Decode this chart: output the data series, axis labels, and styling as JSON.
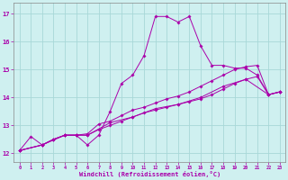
{
  "bg_color": "#cff0f0",
  "grid_color": "#a8d8d8",
  "line_color": "#aa00aa",
  "xlim_min": -0.5,
  "xlim_max": 23.5,
  "ylim_min": 11.7,
  "ylim_max": 17.4,
  "xticks": [
    0,
    1,
    2,
    3,
    4,
    5,
    6,
    7,
    8,
    9,
    10,
    11,
    12,
    13,
    14,
    15,
    16,
    17,
    18,
    19,
    20,
    21,
    22,
    23
  ],
  "yticks": [
    12,
    13,
    14,
    15,
    16,
    17
  ],
  "xlabel": "Windchill (Refroidissement éolien,°C)",
  "line1_x": [
    0,
    1,
    2,
    3,
    4,
    5,
    6,
    7,
    8,
    9,
    10,
    11,
    12,
    13,
    14,
    15,
    16,
    17,
    18,
    19,
    20,
    21,
    22,
    23
  ],
  "line1_y": [
    12.1,
    12.6,
    12.3,
    12.5,
    12.65,
    12.65,
    12.3,
    12.65,
    13.5,
    14.5,
    14.8,
    15.5,
    16.9,
    16.9,
    16.7,
    16.9,
    15.85,
    15.15,
    15.15,
    15.05,
    15.05,
    14.8,
    14.1,
    14.2
  ],
  "line2_x": [
    0,
    2,
    3,
    4,
    5,
    6,
    7,
    8,
    9,
    10,
    11,
    12,
    13,
    14,
    15,
    16,
    17,
    18,
    19,
    20,
    21,
    22,
    23
  ],
  "line2_y": [
    12.1,
    12.3,
    12.5,
    12.65,
    12.65,
    12.7,
    13.05,
    13.15,
    13.35,
    13.55,
    13.65,
    13.8,
    13.95,
    14.05,
    14.2,
    14.4,
    14.6,
    14.8,
    15.0,
    15.1,
    15.15,
    14.1,
    14.2
  ],
  "line3_x": [
    0,
    2,
    3,
    4,
    5,
    6,
    7,
    8,
    9,
    10,
    11,
    12,
    13,
    14,
    15,
    16,
    17,
    18,
    19,
    20,
    21,
    22,
    23
  ],
  "line3_y": [
    12.1,
    12.3,
    12.5,
    12.65,
    12.65,
    12.65,
    12.85,
    13.0,
    13.15,
    13.3,
    13.45,
    13.55,
    13.65,
    13.75,
    13.85,
    13.95,
    14.1,
    14.3,
    14.5,
    14.65,
    14.75,
    14.1,
    14.2
  ],
  "line4_x": [
    0,
    2,
    4,
    5,
    6,
    8,
    10,
    12,
    14,
    16,
    18,
    20,
    22,
    23
  ],
  "line4_y": [
    12.1,
    12.3,
    12.65,
    12.65,
    12.65,
    13.1,
    13.3,
    13.6,
    13.75,
    14.0,
    14.4,
    14.65,
    14.1,
    14.2
  ]
}
